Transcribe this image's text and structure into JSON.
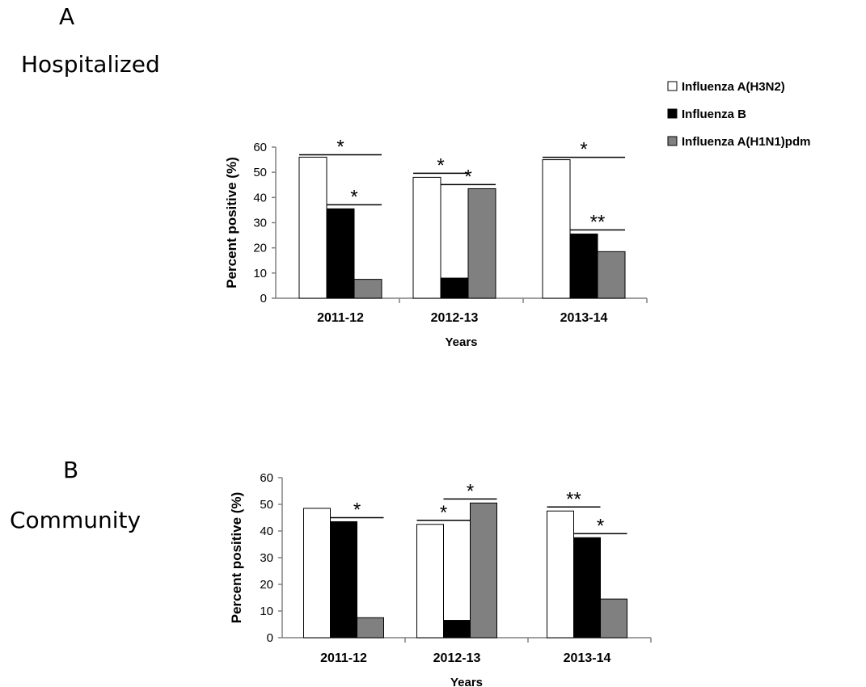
{
  "panels": [
    {
      "letter": "A",
      "label": "Hospitalized"
    },
    {
      "letter": "B",
      "label": "Community"
    }
  ],
  "legend": [
    {
      "name": "Influenza A(H3N2)",
      "color": "#ffffff"
    },
    {
      "name": "Influenza B",
      "color": "#000000"
    },
    {
      "name": "Influenza A(H1N1)pdm",
      "color": "#808080"
    }
  ],
  "chart_data": [
    {
      "type": "bar",
      "title": "",
      "xlabel": "Years",
      "ylabel": "Percent positive (%)",
      "ylim": [
        0,
        60
      ],
      "yticks": [
        0,
        10,
        20,
        30,
        40,
        50,
        60
      ],
      "categories": [
        "2011-12",
        "2012-13",
        "2013-14"
      ],
      "series": [
        {
          "name": "Influenza A(H3N2)",
          "values": [
            56,
            48,
            55
          ]
        },
        {
          "name": "Influenza B",
          "values": [
            35.5,
            8,
            25.5
          ]
        },
        {
          "name": "Influenza A(H1N1)pdm",
          "values": [
            7.5,
            43.5,
            18.5
          ]
        }
      ],
      "annotations": [
        {
          "category": 0,
          "from_series": 0,
          "to_series": 2,
          "text": "*"
        },
        {
          "category": 0,
          "from_series": 1,
          "to_series": 2,
          "text": "*"
        },
        {
          "category": 1,
          "from_series": 0,
          "to_series": 1,
          "text": "*"
        },
        {
          "category": 1,
          "from_series": 1,
          "to_series": 2,
          "text": "*"
        },
        {
          "category": 2,
          "from_series": 0,
          "to_series": 2,
          "text": "*"
        },
        {
          "category": 2,
          "from_series": 1,
          "to_series": 2,
          "text": "**"
        }
      ],
      "grid": false,
      "legend_position": "top-right"
    },
    {
      "type": "bar",
      "title": "",
      "xlabel": "Years",
      "ylabel": "Percent positive (%)",
      "ylim": [
        0,
        60
      ],
      "yticks": [
        0,
        10,
        20,
        30,
        40,
        50,
        60
      ],
      "categories": [
        "2011-12",
        "2012-13",
        "2013-14"
      ],
      "series": [
        {
          "name": "Influenza A(H3N2)",
          "values": [
            48.5,
            42.5,
            47.5
          ]
        },
        {
          "name": "Influenza B",
          "values": [
            43.5,
            6.5,
            37.5
          ]
        },
        {
          "name": "Influenza A(H1N1)pdm",
          "values": [
            7.5,
            50.5,
            14.5
          ]
        }
      ],
      "annotations": [
        {
          "category": 0,
          "from_series": 1,
          "to_series": 2,
          "text": "*"
        },
        {
          "category": 1,
          "from_series": 0,
          "to_series": 1,
          "text": "*"
        },
        {
          "category": 1,
          "from_series": 1,
          "to_series": 2,
          "text": "*"
        },
        {
          "category": 2,
          "from_series": 0,
          "to_series": 1,
          "text": "**"
        },
        {
          "category": 2,
          "from_series": 1,
          "to_series": 2,
          "text": "*"
        }
      ],
      "grid": false
    }
  ]
}
